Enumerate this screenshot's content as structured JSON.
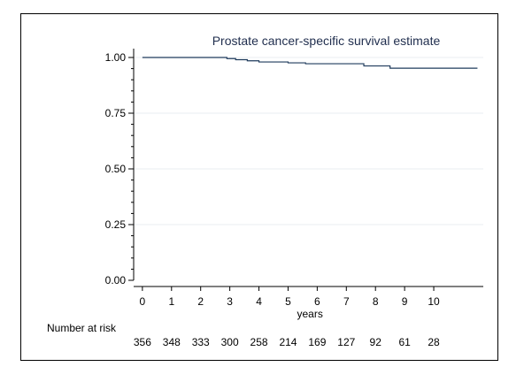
{
  "chart_data": {
    "type": "line",
    "title": "Prostate cancer-specific survival estimate",
    "xlabel": "years",
    "ylabel": "",
    "xlim": [
      -0.3,
      11.7
    ],
    "ylim": [
      0,
      1
    ],
    "x_ticks": [
      0,
      1,
      2,
      3,
      4,
      5,
      6,
      7,
      8,
      9,
      10
    ],
    "y_ticks": [
      0,
      0.25,
      0.5,
      0.75,
      1.0
    ],
    "y_tick_labels": [
      "0.00",
      "0.25",
      "0.50",
      "0.75",
      "1.00"
    ],
    "grid": true,
    "series": [
      {
        "x": [
          0,
          2.9,
          3.2,
          3.6,
          4.0,
          5.0,
          5.6,
          7.6,
          8.5,
          11.5
        ],
        "y": [
          1.0,
          0.995,
          0.99,
          0.985,
          0.98,
          0.976,
          0.972,
          0.962,
          0.952,
          0.952
        ]
      }
    ],
    "risk_table": {
      "label": "Number at risk",
      "times": [
        0,
        1,
        2,
        3,
        4,
        5,
        6,
        7,
        8,
        9,
        10
      ],
      "counts": [
        356,
        348,
        333,
        300,
        258,
        214,
        169,
        127,
        92,
        61,
        28
      ]
    }
  },
  "colors": {
    "curve": "#1f3b5c",
    "grid": "#e9eef0",
    "axis": "#000000",
    "title": "#1f2d4d"
  }
}
